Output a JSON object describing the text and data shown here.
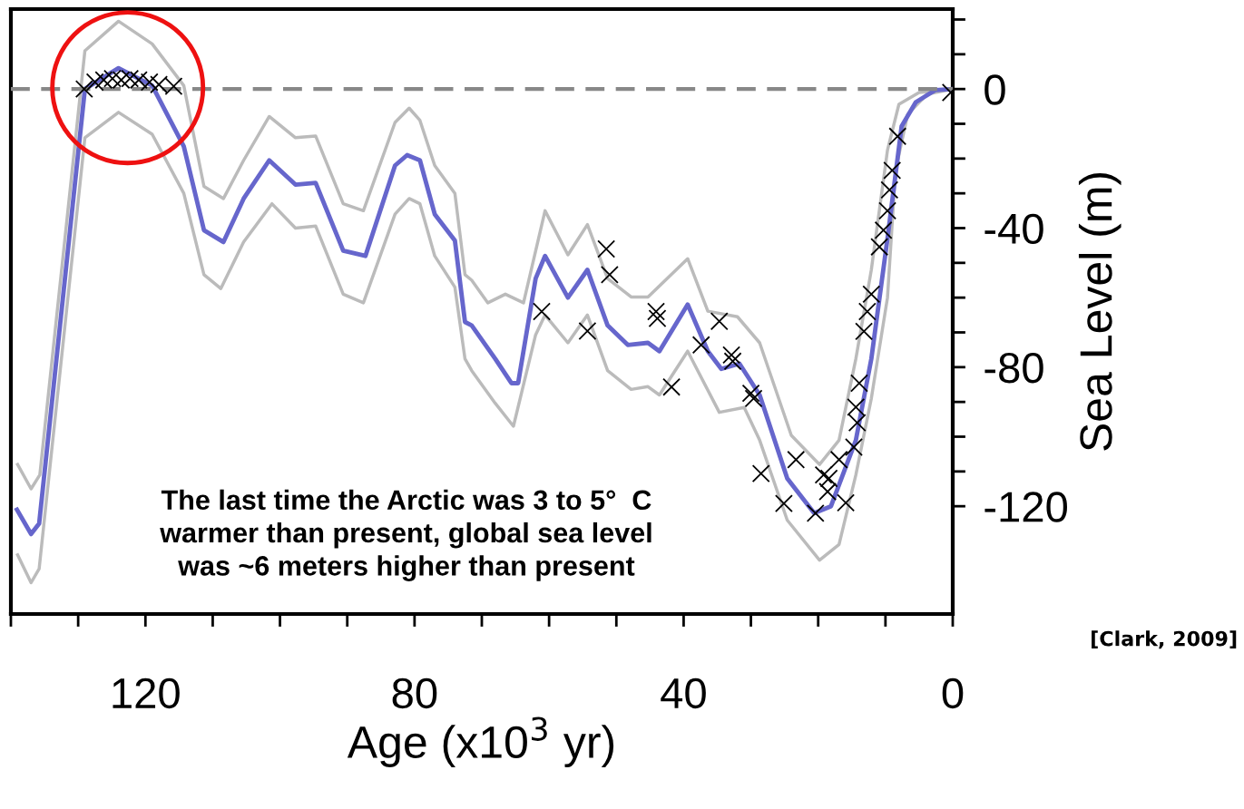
{
  "chart_data": {
    "type": "line",
    "xlabel": "Age (x10$^{3}$ yr)",
    "ylabel": "Sea Level (m)",
    "xlim": [
      140,
      0
    ],
    "ylim": [
      -151,
      23
    ],
    "xticks": [
      {
        "value": 140,
        "label": null
      },
      {
        "value": 130,
        "label": null
      },
      120,
      {
        "value": 110,
        "label": null
      },
      {
        "value": 100,
        "label": null
      },
      {
        "value": 90,
        "label": null
      },
      80,
      {
        "value": 70,
        "label": null
      },
      {
        "value": 60,
        "label": null
      },
      {
        "value": 50,
        "label": null
      },
      40,
      {
        "value": 30,
        "label": null
      },
      {
        "value": 20,
        "label": null
      },
      {
        "value": 10,
        "label": null
      },
      0
    ],
    "yticks": [
      {
        "value": 20,
        "label": null
      },
      {
        "value": 10,
        "label": null
      },
      0,
      {
        "value": -10,
        "label": null
      },
      {
        "value": -20,
        "label": null
      },
      {
        "value": -30,
        "label": null
      },
      -40,
      {
        "value": -50,
        "label": null
      },
      {
        "value": -60,
        "label": null
      },
      {
        "value": -70,
        "label": null
      },
      -80,
      {
        "value": -90,
        "label": null
      },
      {
        "value": -100,
        "label": null
      },
      {
        "value": -110,
        "label": null
      },
      -120
    ],
    "grid": false,
    "legend": false,
    "ref_lines": [
      {
        "axis": "y",
        "value": 0,
        "color": "#888888",
        "line_style": "dashed"
      }
    ],
    "annotations": [
      "The last time the Arctic was 3 to 5°  C\nwarmer than present, global sea level\nwas ~6 meters higher than present",
      "[Clark, 2009]"
    ],
    "series": [
      {
        "color": "#bbbbbb",
        "x": [
          139,
          137,
          135.7,
          129,
          124,
          119,
          114.3,
          111.3,
          108.4,
          105.4,
          101.6,
          97.7,
          94.7,
          90.6,
          87.6,
          82.9,
          80.8,
          79.2,
          77,
          74,
          72.5,
          71.5,
          69.1,
          66.5,
          63.8,
          60.6,
          57.2,
          54.3,
          51.3,
          47.8,
          45.3,
          39.4,
          36.4,
          32,
          28.7,
          24,
          19.8,
          16.9,
          14.4,
          12.1,
          9.7,
          8,
          5,
          0
        ],
        "values": [
          -108,
          -115,
          -111,
          11,
          19.5,
          13,
          1,
          -28,
          -31.5,
          -20.5,
          -7.9,
          -14,
          -13.5,
          -33,
          -35,
          -9.6,
          -5.5,
          -9,
          -22,
          -30,
          -53.4,
          -55,
          -61.5,
          -59,
          -61.5,
          -35,
          -47.7,
          -39,
          -54.5,
          -59.8,
          -59.8,
          -48.8,
          -63.9,
          -65.5,
          -73,
          -99.6,
          -108,
          -101,
          -77.6,
          -52,
          -17.6,
          -4.4,
          -1,
          0
        ]
      },
      {
        "color": "#bbbbbb",
        "x": [
          139,
          137,
          135.8,
          129,
          124,
          119,
          114.3,
          111.3,
          108.8,
          105.4,
          101.2,
          97.7,
          94.7,
          90.6,
          87.6,
          82.9,
          80.8,
          79.2,
          77,
          74,
          72.5,
          71.5,
          68,
          65.3,
          62,
          60.6,
          57.2,
          54.3,
          51.3,
          47.8,
          45.3,
          43.6,
          39.4,
          34.7,
          31,
          28.7,
          24.6,
          19.8,
          16.9,
          14.4,
          12.1,
          9.7,
          8.5,
          6.7,
          3.8,
          0
        ],
        "values": [
          -134,
          -142,
          -138,
          -14,
          -6.7,
          -13,
          -30,
          -53.4,
          -57.4,
          -44,
          -33,
          -40,
          -39.4,
          -59,
          -61.5,
          -36,
          -31.5,
          -33,
          -48,
          -57,
          -77.6,
          -81,
          -90.4,
          -97,
          -70.7,
          -65,
          -73,
          -65,
          -81,
          -86.4,
          -85.6,
          -88,
          -75.4,
          -93,
          -91.6,
          -101,
          -124,
          -135.5,
          -131,
          -111,
          -89,
          -60,
          -23.4,
          -7.3,
          -1.5,
          0
        ]
      },
      {
        "color": "#6666cc",
        "x": [
          139.1,
          137,
          135.8,
          129,
          124,
          119,
          114.3,
          111.3,
          108.4,
          105.4,
          101.6,
          97.7,
          94.7,
          90.6,
          87.3,
          82.9,
          81.1,
          79.2,
          77,
          74,
          72.5,
          71.5,
          68,
          65.6,
          64.6,
          62,
          60.6,
          57.2,
          54.3,
          51.3,
          48.3,
          45.3,
          43.6,
          39.4,
          36.4,
          34.4,
          31.7,
          28.7,
          24.6,
          20.6,
          18.1,
          14.4,
          12.1,
          9.7,
          7.6,
          5.5,
          2.6,
          0
        ],
        "values": [
          -121,
          -128,
          -125,
          0,
          6,
          1,
          -16.5,
          -40.6,
          -44,
          -31.5,
          -20.5,
          -27.5,
          -27,
          -46.5,
          -48,
          -22,
          -19,
          -20.5,
          -36,
          -43.6,
          -67,
          -68,
          -77.6,
          -84.6,
          -84.6,
          -54.5,
          -48,
          -60,
          -52,
          -68,
          -73.6,
          -73,
          -75.4,
          -62,
          -75.4,
          -80.5,
          -79,
          -88,
          -112,
          -122,
          -120,
          -101,
          -77.6,
          -43,
          -10.7,
          -3.8,
          -0.3,
          0
        ]
      },
      {
        "type": "scatter",
        "color": "#000000",
        "marker": "cross",
        "x": [
          129.1,
          127.5,
          126.2,
          124.9,
          123.6,
          122.3,
          121,
          119.4,
          118,
          115.8,
          61.1,
          54.3,
          51.5,
          51,
          44.1,
          43.9,
          41.8,
          37.4,
          34.7,
          32.9,
          32.7,
          30,
          29.6,
          28.5,
          25.1,
          23.3,
          20.4,
          19.2,
          18.6,
          18.4,
          16.9,
          15.9,
          14.7,
          14.4,
          14.2,
          13.9,
          13.2,
          12.7,
          12.1,
          10.9,
          10.3,
          9.7,
          9.4,
          9,
          8.2,
          0.3
        ],
        "values": [
          0,
          2,
          2.6,
          3,
          2.6,
          3,
          2.6,
          2,
          1.3,
          0.8,
          -64,
          -69.6,
          -46,
          -53.4,
          -64,
          -66,
          -85.7,
          -73.6,
          -66.8,
          -76.5,
          -78.3,
          -87.5,
          -89,
          -110.6,
          -119.2,
          -106.6,
          -122,
          -111,
          -115.8,
          -112,
          -106.6,
          -119,
          -103,
          -91.5,
          -96,
          -84.6,
          -69.7,
          -64,
          -59,
          -45.4,
          -40.6,
          -35,
          -29,
          -23.4,
          -13.6,
          -1
        ]
      }
    ]
  }
}
